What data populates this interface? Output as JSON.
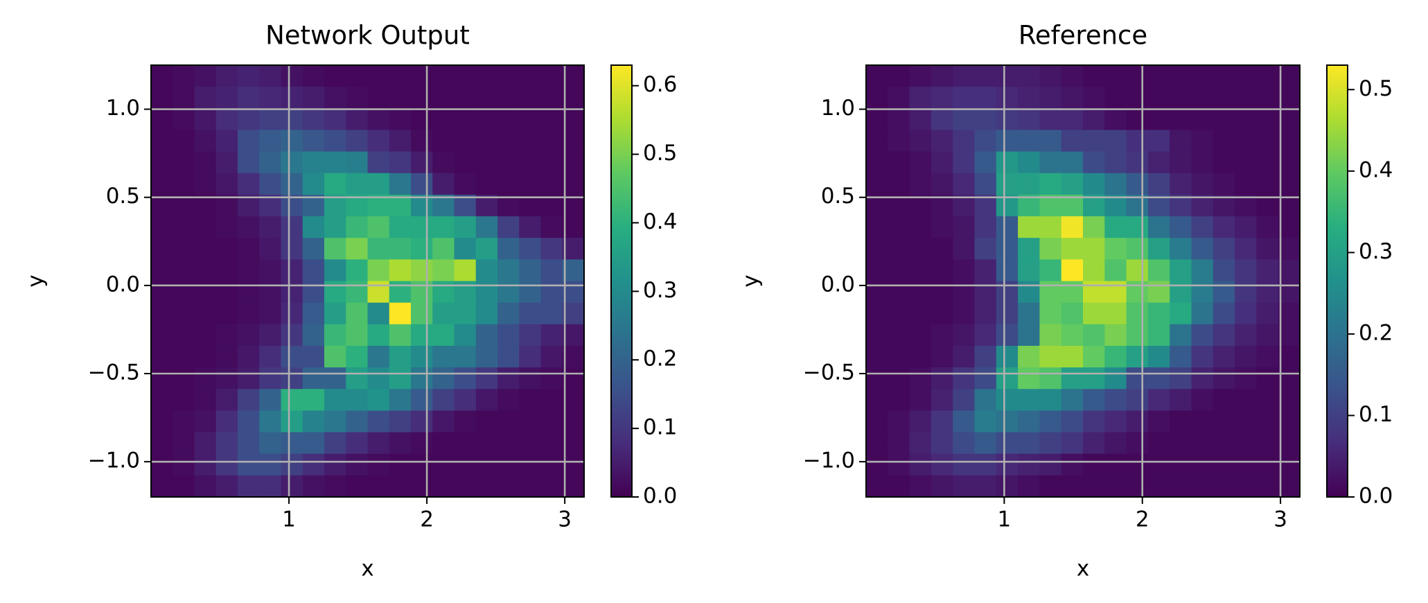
{
  "chart_data": [
    {
      "type": "heatmap",
      "title": "Network Output",
      "xlabel": "x",
      "ylabel": "y",
      "colormap": "viridis",
      "grid": true,
      "xlim": [
        0,
        3.14
      ],
      "ylim": [
        -1.2,
        1.25
      ],
      "clim": [
        0,
        0.63
      ],
      "xticks": [
        1,
        2,
        3
      ],
      "yticks": [
        {
          "value": -1,
          "label": "−1.0"
        },
        {
          "value": -0.5,
          "label": "−0.5"
        },
        {
          "value": 0,
          "label": "0.0"
        },
        0.5,
        {
          "value": 1,
          "label": "1.0"
        }
      ],
      "cticks": [
        {
          "value": 0,
          "label": "0.0"
        },
        0.1,
        0.2,
        0.3,
        0.4,
        0.5,
        0.6
      ],
      "z": [
        [
          0.01,
          0.02,
          0.03,
          0.05,
          0.06,
          0.05,
          0.03,
          0.02,
          0.01,
          0.01,
          0.01,
          0.01,
          0.01,
          0.01,
          0.01,
          0.01,
          0.01,
          0.01,
          0.01,
          0.01
        ],
        [
          0.01,
          0.02,
          0.05,
          0.06,
          0.08,
          0.07,
          0.06,
          0.05,
          0.03,
          0.02,
          0.01,
          0.01,
          0.01,
          0.01,
          0.01,
          0.01,
          0.01,
          0.01,
          0.01,
          0.01
        ],
        [
          0.01,
          0.02,
          0.04,
          0.08,
          0.1,
          0.12,
          0.12,
          0.1,
          0.08,
          0.05,
          0.03,
          0.02,
          0.01,
          0.01,
          0.01,
          0.01,
          0.01,
          0.01,
          0.01,
          0.01
        ],
        [
          0.01,
          0.01,
          0.03,
          0.06,
          0.15,
          0.18,
          0.2,
          0.17,
          0.15,
          0.12,
          0.08,
          0.05,
          0.02,
          0.01,
          0.01,
          0.01,
          0.01,
          0.01,
          0.01,
          0.01
        ],
        [
          0.01,
          0.01,
          0.02,
          0.05,
          0.15,
          0.2,
          0.25,
          0.28,
          0.28,
          0.27,
          0.12,
          0.1,
          0.05,
          0.02,
          0.01,
          0.01,
          0.01,
          0.01,
          0.01,
          0.01
        ],
        [
          0.01,
          0.01,
          0.02,
          0.04,
          0.08,
          0.15,
          0.2,
          0.3,
          0.38,
          0.35,
          0.35,
          0.25,
          0.15,
          0.05,
          0.02,
          0.01,
          0.01,
          0.01,
          0.01,
          0.01
        ],
        [
          0.01,
          0.01,
          0.01,
          0.02,
          0.05,
          0.08,
          0.15,
          0.2,
          0.35,
          0.38,
          0.4,
          0.4,
          0.3,
          0.25,
          0.15,
          0.05,
          0.02,
          0.01,
          0.01,
          0.01
        ],
        [
          0.01,
          0.01,
          0.01,
          0.02,
          0.03,
          0.05,
          0.1,
          0.3,
          0.35,
          0.42,
          0.45,
          0.38,
          0.38,
          0.38,
          0.35,
          0.25,
          0.12,
          0.05,
          0.02,
          0.01
        ],
        [
          0.01,
          0.01,
          0.01,
          0.01,
          0.02,
          0.04,
          0.1,
          0.2,
          0.45,
          0.5,
          0.42,
          0.42,
          0.4,
          0.45,
          0.3,
          0.35,
          0.2,
          0.15,
          0.1,
          0.05
        ],
        [
          0.01,
          0.01,
          0.01,
          0.01,
          0.02,
          0.03,
          0.06,
          0.15,
          0.3,
          0.4,
          0.5,
          0.55,
          0.52,
          0.5,
          0.55,
          0.3,
          0.25,
          0.2,
          0.15,
          0.2
        ],
        [
          0.01,
          0.01,
          0.01,
          0.01,
          0.02,
          0.03,
          0.06,
          0.15,
          0.38,
          0.42,
          0.58,
          0.4,
          0.45,
          0.38,
          0.35,
          0.3,
          0.25,
          0.2,
          0.15,
          0.15
        ],
        [
          0.01,
          0.01,
          0.01,
          0.01,
          0.02,
          0.03,
          0.07,
          0.18,
          0.35,
          0.45,
          0.3,
          0.63,
          0.45,
          0.35,
          0.35,
          0.3,
          0.2,
          0.15,
          0.15,
          0.12
        ],
        [
          0.01,
          0.01,
          0.01,
          0.02,
          0.03,
          0.05,
          0.1,
          0.2,
          0.42,
          0.45,
          0.38,
          0.45,
          0.38,
          0.38,
          0.3,
          0.2,
          0.15,
          0.1,
          0.06,
          0.04
        ],
        [
          0.01,
          0.01,
          0.01,
          0.02,
          0.04,
          0.08,
          0.15,
          0.15,
          0.45,
          0.4,
          0.25,
          0.35,
          0.3,
          0.25,
          0.25,
          0.2,
          0.15,
          0.08,
          0.04,
          0.02
        ],
        [
          0.01,
          0.01,
          0.02,
          0.03,
          0.05,
          0.1,
          0.12,
          0.2,
          0.2,
          0.35,
          0.3,
          0.35,
          0.25,
          0.2,
          0.15,
          0.1,
          0.05,
          0.03,
          0.02,
          0.01
        ],
        [
          0.01,
          0.01,
          0.02,
          0.05,
          0.12,
          0.2,
          0.4,
          0.4,
          0.3,
          0.3,
          0.32,
          0.25,
          0.18,
          0.12,
          0.08,
          0.04,
          0.02,
          0.01,
          0.01,
          0.01
        ],
        [
          0.01,
          0.02,
          0.03,
          0.08,
          0.15,
          0.25,
          0.35,
          0.28,
          0.25,
          0.2,
          0.15,
          0.12,
          0.08,
          0.04,
          0.02,
          0.01,
          0.01,
          0.01,
          0.01,
          0.01
        ],
        [
          0.01,
          0.02,
          0.05,
          0.1,
          0.15,
          0.2,
          0.18,
          0.18,
          0.12,
          0.08,
          0.05,
          0.03,
          0.02,
          0.01,
          0.01,
          0.01,
          0.01,
          0.01,
          0.01,
          0.01
        ],
        [
          0.01,
          0.02,
          0.05,
          0.1,
          0.15,
          0.15,
          0.12,
          0.08,
          0.05,
          0.03,
          0.02,
          0.01,
          0.01,
          0.01,
          0.01,
          0.01,
          0.01,
          0.01,
          0.01,
          0.01
        ],
        [
          0.01,
          0.01,
          0.03,
          0.05,
          0.08,
          0.08,
          0.05,
          0.03,
          0.02,
          0.01,
          0.01,
          0.01,
          0.01,
          0.01,
          0.01,
          0.01,
          0.01,
          0.01,
          0.01,
          0.01
        ]
      ]
    },
    {
      "type": "heatmap",
      "title": "Reference",
      "xlabel": "x",
      "ylabel": "y",
      "colormap": "viridis",
      "grid": true,
      "xlim": [
        0,
        3.14
      ],
      "ylim": [
        -1.2,
        1.25
      ],
      "clim": [
        0,
        0.53
      ],
      "xticks": [
        1,
        2,
        3
      ],
      "yticks": [
        {
          "value": -1,
          "label": "−1.0"
        },
        {
          "value": -0.5,
          "label": "−0.5"
        },
        {
          "value": 0,
          "label": "0.0"
        },
        0.5,
        {
          "value": 1,
          "label": "1.0"
        }
      ],
      "cticks": [
        {
          "value": 0,
          "label": "0.0"
        },
        0.1,
        0.2,
        0.3,
        0.4,
        0.5
      ],
      "z": [
        [
          0.01,
          0.01,
          0.02,
          0.03,
          0.04,
          0.04,
          0.04,
          0.04,
          0.03,
          0.02,
          0.01,
          0.01,
          0.01,
          0.01,
          0.01,
          0.01,
          0.01,
          0.01,
          0.01,
          0.01
        ],
        [
          0.01,
          0.02,
          0.05,
          0.06,
          0.07,
          0.07,
          0.06,
          0.05,
          0.04,
          0.03,
          0.02,
          0.01,
          0.01,
          0.01,
          0.01,
          0.01,
          0.01,
          0.01,
          0.01,
          0.01
        ],
        [
          0.01,
          0.02,
          0.04,
          0.08,
          0.1,
          0.1,
          0.09,
          0.08,
          0.06,
          0.06,
          0.04,
          0.02,
          0.01,
          0.01,
          0.01,
          0.01,
          0.01,
          0.01,
          0.01,
          0.01
        ],
        [
          0.01,
          0.02,
          0.03,
          0.05,
          0.08,
          0.12,
          0.15,
          0.15,
          0.15,
          0.1,
          0.1,
          0.1,
          0.07,
          0.07,
          0.03,
          0.02,
          0.01,
          0.01,
          0.01,
          0.01
        ],
        [
          0.01,
          0.01,
          0.02,
          0.04,
          0.08,
          0.15,
          0.28,
          0.25,
          0.2,
          0.2,
          0.12,
          0.1,
          0.08,
          0.05,
          0.03,
          0.02,
          0.01,
          0.01,
          0.01,
          0.01
        ],
        [
          0.01,
          0.01,
          0.02,
          0.03,
          0.06,
          0.12,
          0.3,
          0.3,
          0.32,
          0.3,
          0.25,
          0.2,
          0.15,
          0.1,
          0.05,
          0.03,
          0.02,
          0.01,
          0.01,
          0.01
        ],
        [
          0.01,
          0.01,
          0.01,
          0.02,
          0.04,
          0.08,
          0.28,
          0.35,
          0.38,
          0.38,
          0.3,
          0.25,
          0.2,
          0.12,
          0.08,
          0.05,
          0.03,
          0.02,
          0.01,
          0.01
        ],
        [
          0.01,
          0.01,
          0.01,
          0.02,
          0.03,
          0.08,
          0.15,
          0.45,
          0.45,
          0.52,
          0.42,
          0.32,
          0.32,
          0.2,
          0.15,
          0.1,
          0.06,
          0.04,
          0.02,
          0.01
        ],
        [
          0.01,
          0.01,
          0.01,
          0.01,
          0.03,
          0.1,
          0.15,
          0.3,
          0.42,
          0.45,
          0.45,
          0.4,
          0.38,
          0.3,
          0.22,
          0.15,
          0.1,
          0.06,
          0.03,
          0.02
        ],
        [
          0.01,
          0.01,
          0.01,
          0.01,
          0.02,
          0.05,
          0.15,
          0.3,
          0.35,
          0.53,
          0.45,
          0.38,
          0.45,
          0.38,
          0.3,
          0.22,
          0.12,
          0.08,
          0.05,
          0.03
        ],
        [
          0.01,
          0.01,
          0.01,
          0.01,
          0.02,
          0.05,
          0.1,
          0.25,
          0.4,
          0.4,
          0.48,
          0.48,
          0.4,
          0.42,
          0.3,
          0.22,
          0.15,
          0.08,
          0.05,
          0.03
        ],
        [
          0.01,
          0.01,
          0.01,
          0.01,
          0.02,
          0.05,
          0.1,
          0.2,
          0.4,
          0.38,
          0.45,
          0.45,
          0.38,
          0.35,
          0.32,
          0.2,
          0.12,
          0.07,
          0.04,
          0.02
        ],
        [
          0.01,
          0.01,
          0.01,
          0.02,
          0.03,
          0.06,
          0.12,
          0.2,
          0.42,
          0.4,
          0.38,
          0.42,
          0.38,
          0.35,
          0.2,
          0.12,
          0.08,
          0.05,
          0.03,
          0.02
        ],
        [
          0.01,
          0.01,
          0.01,
          0.02,
          0.04,
          0.1,
          0.25,
          0.42,
          0.45,
          0.45,
          0.4,
          0.35,
          0.3,
          0.25,
          0.15,
          0.08,
          0.05,
          0.03,
          0.02,
          0.01
        ],
        [
          0.01,
          0.01,
          0.02,
          0.04,
          0.08,
          0.12,
          0.3,
          0.4,
          0.38,
          0.3,
          0.3,
          0.25,
          0.12,
          0.12,
          0.1,
          0.05,
          0.03,
          0.02,
          0.01,
          0.01
        ],
        [
          0.01,
          0.01,
          0.02,
          0.05,
          0.1,
          0.2,
          0.25,
          0.25,
          0.25,
          0.2,
          0.15,
          0.12,
          0.1,
          0.06,
          0.04,
          0.02,
          0.01,
          0.01,
          0.01,
          0.01
        ],
        [
          0.01,
          0.02,
          0.04,
          0.08,
          0.15,
          0.22,
          0.2,
          0.18,
          0.15,
          0.12,
          0.08,
          0.06,
          0.04,
          0.02,
          0.01,
          0.01,
          0.01,
          0.01,
          0.01,
          0.01
        ],
        [
          0.01,
          0.02,
          0.05,
          0.08,
          0.12,
          0.15,
          0.12,
          0.12,
          0.1,
          0.08,
          0.05,
          0.03,
          0.02,
          0.01,
          0.01,
          0.01,
          0.01,
          0.01,
          0.01,
          0.01
        ],
        [
          0.01,
          0.02,
          0.04,
          0.06,
          0.08,
          0.08,
          0.06,
          0.05,
          0.04,
          0.02,
          0.01,
          0.01,
          0.01,
          0.01,
          0.01,
          0.01,
          0.01,
          0.01,
          0.01,
          0.01
        ],
        [
          0.01,
          0.01,
          0.02,
          0.03,
          0.04,
          0.04,
          0.03,
          0.02,
          0.01,
          0.01,
          0.01,
          0.01,
          0.01,
          0.01,
          0.01,
          0.01,
          0.01,
          0.01,
          0.01,
          0.01
        ]
      ]
    }
  ]
}
